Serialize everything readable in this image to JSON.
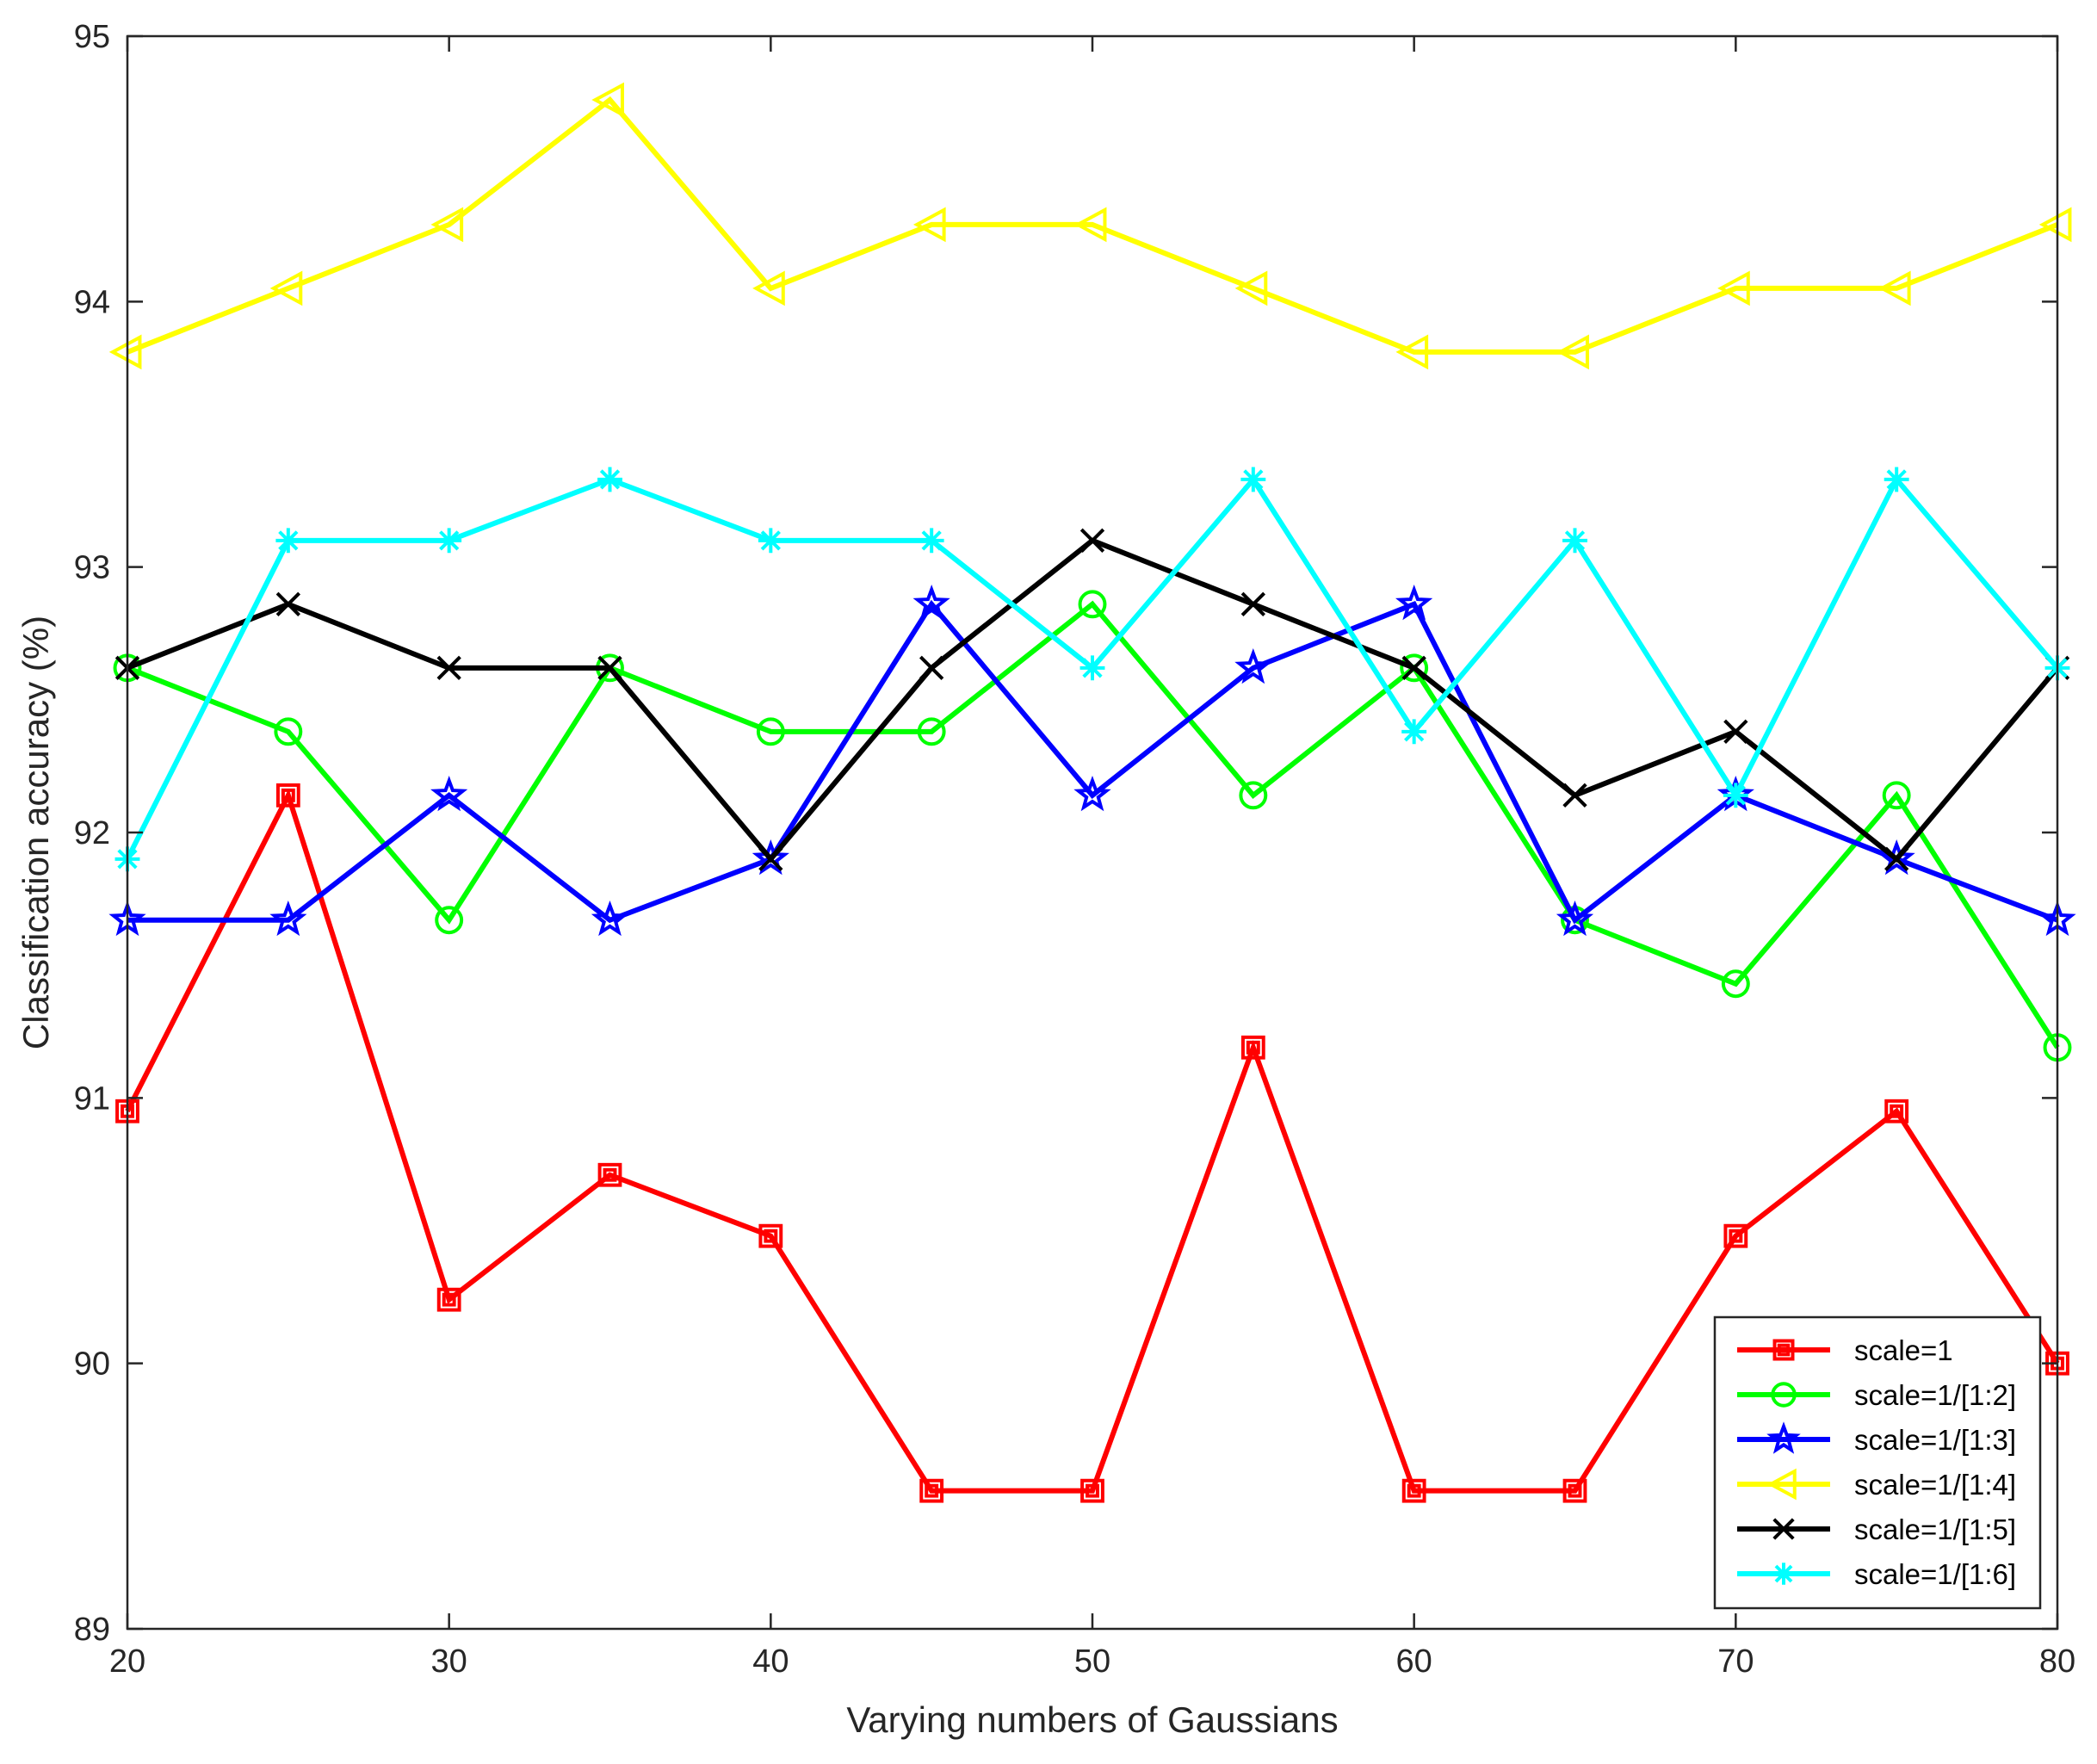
{
  "chart_data": {
    "type": "line",
    "title": "",
    "xlabel": "Varying numbers of Gaussians",
    "ylabel": "Classification accuracy (%)",
    "xlim": [
      20,
      80
    ],
    "ylim": [
      89,
      95
    ],
    "xticks": [
      20,
      30,
      40,
      50,
      60,
      70,
      80
    ],
    "yticks": [
      89,
      90,
      91,
      92,
      93,
      94,
      95
    ],
    "grid": false,
    "legend_position": "bottom-right",
    "x": [
      20,
      25,
      30,
      35,
      40,
      45,
      50,
      55,
      60,
      65,
      70,
      75,
      80
    ],
    "series": [
      {
        "name": "scale=1",
        "color": "#ff0000",
        "marker": "square",
        "values": [
          90.95,
          92.14,
          90.24,
          90.71,
          90.48,
          89.52,
          89.52,
          91.19,
          89.52,
          89.52,
          90.48,
          90.95,
          90.0
        ]
      },
      {
        "name": "scale=1/[1:2]",
        "color": "#00ff00",
        "marker": "circle",
        "values": [
          92.62,
          92.38,
          91.67,
          92.62,
          92.38,
          92.38,
          92.86,
          92.14,
          92.62,
          91.67,
          91.43,
          92.14,
          91.19
        ]
      },
      {
        "name": "scale=1/[1:3]",
        "color": "#0000ff",
        "marker": "star",
        "values": [
          91.67,
          91.67,
          92.14,
          91.67,
          91.9,
          92.86,
          92.14,
          92.62,
          92.86,
          91.67,
          92.14,
          91.9,
          91.67
        ]
      },
      {
        "name": "scale=1/[1:4]",
        "color": "#ffff00",
        "marker": "triangle-left",
        "values": [
          93.81,
          94.05,
          94.29,
          94.76,
          94.05,
          94.29,
          94.29,
          94.05,
          93.81,
          93.81,
          94.05,
          94.05,
          94.29
        ]
      },
      {
        "name": "scale=1/[1:5]",
        "color": "#000000",
        "marker": "x",
        "values": [
          92.62,
          92.86,
          92.62,
          92.62,
          91.9,
          92.62,
          93.1,
          92.86,
          92.62,
          92.14,
          92.38,
          91.9,
          92.62
        ]
      },
      {
        "name": "scale=1/[1:6]",
        "color": "#00ffff",
        "marker": "asterisk",
        "values": [
          91.9,
          93.1,
          93.1,
          93.33,
          93.1,
          93.1,
          92.62,
          93.33,
          92.38,
          93.1,
          92.14,
          93.33,
          92.62
        ]
      }
    ]
  }
}
